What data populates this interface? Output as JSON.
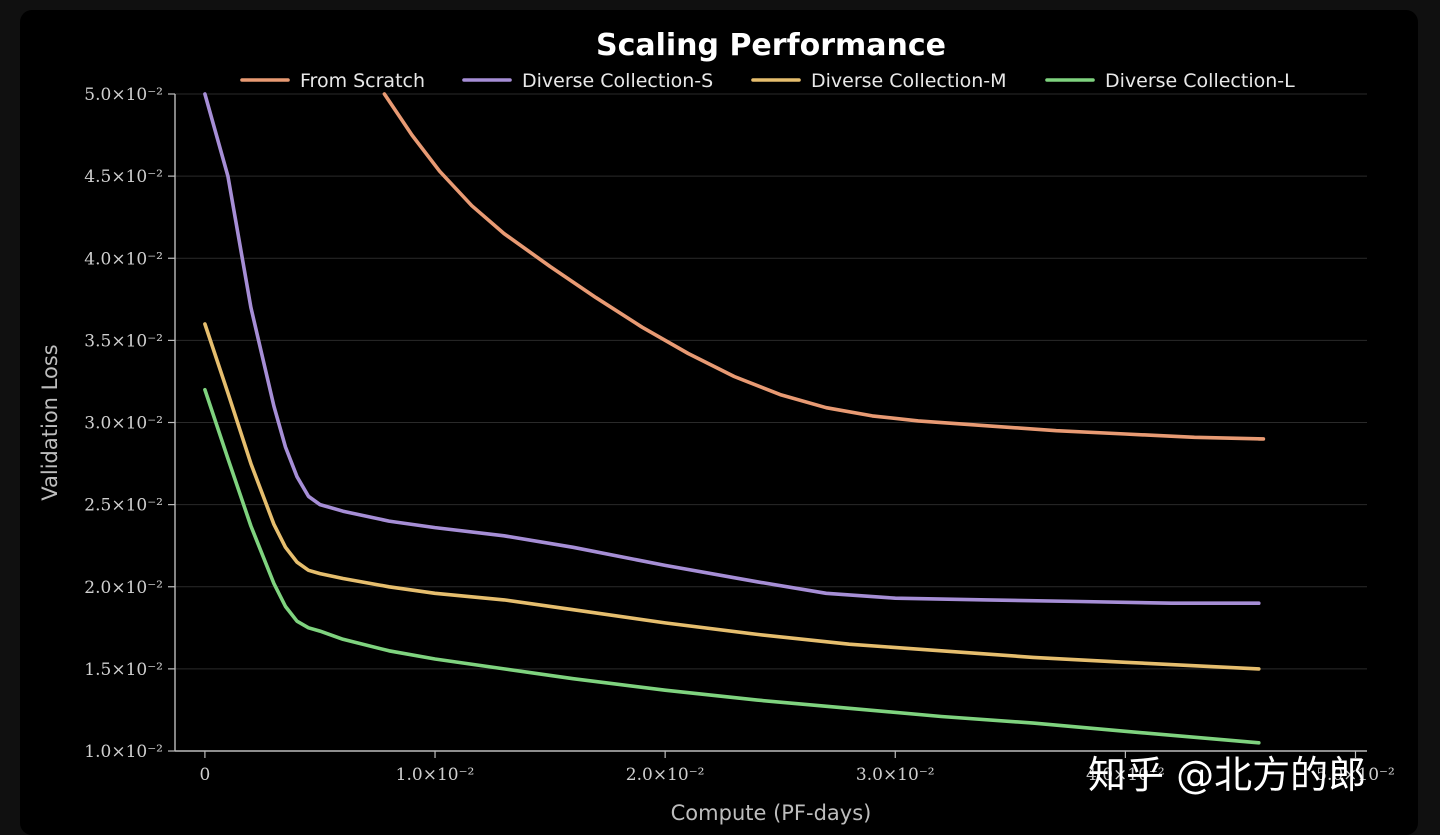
{
  "chart_data": {
    "type": "line",
    "title": "Scaling Performance",
    "xlabel": "Compute (PF-days)",
    "ylabel": "Validation Loss",
    "xlim": [
      -0.0013,
      0.0505
    ],
    "ylim": [
      0.01,
      0.05
    ],
    "grid": true,
    "grid_axis": "y",
    "legend_position": "top",
    "x_ticks": [
      0,
      0.01,
      0.02,
      0.03,
      0.04,
      0.05
    ],
    "x_tick_labels": [
      "0",
      "1.0×10⁻²",
      "2.0×10⁻²",
      "3.0×10⁻²",
      "4.0×10⁻²",
      "5.0×10⁻²"
    ],
    "y_ticks": [
      0.01,
      0.015,
      0.02,
      0.025,
      0.03,
      0.035,
      0.04,
      0.045,
      0.05
    ],
    "y_tick_labels": [
      "1.0×10⁻²",
      "1.5×10⁻²",
      "2.0×10⁻²",
      "2.5×10⁻²",
      "3.0×10⁻²",
      "3.5×10⁻²",
      "4.0×10⁻²",
      "4.5×10⁻²",
      "5.0×10⁻²"
    ],
    "series": [
      {
        "name": "From Scratch",
        "color": "#e89a73",
        "x": [
          0.0078,
          0.009,
          0.0102,
          0.0116,
          0.013,
          0.015,
          0.017,
          0.019,
          0.021,
          0.023,
          0.025,
          0.027,
          0.029,
          0.031,
          0.034,
          0.037,
          0.04,
          0.043,
          0.046,
          0.0458
        ],
        "y": [
          0.05,
          0.0475,
          0.0453,
          0.0432,
          0.0415,
          0.0395,
          0.0376,
          0.0358,
          0.0342,
          0.0328,
          0.0317,
          0.0309,
          0.0304,
          0.0301,
          0.0298,
          0.0295,
          0.0293,
          0.0291,
          0.029,
          0.029
        ]
      },
      {
        "name": "Diverse Collection-S",
        "color": "#a68ed6",
        "x": [
          0,
          0.001,
          0.002,
          0.003,
          0.0035,
          0.004,
          0.0045,
          0.005,
          0.006,
          0.008,
          0.01,
          0.013,
          0.016,
          0.02,
          0.024,
          0.027,
          0.03,
          0.034,
          0.038,
          0.042,
          0.0458
        ],
        "y": [
          0.05,
          0.045,
          0.037,
          0.031,
          0.0285,
          0.0267,
          0.0255,
          0.025,
          0.0246,
          0.024,
          0.0236,
          0.0231,
          0.0224,
          0.0213,
          0.0203,
          0.0196,
          0.0193,
          0.0192,
          0.0191,
          0.019,
          0.019
        ]
      },
      {
        "name": "Diverse Collection-M",
        "color": "#e6be6e",
        "x": [
          0,
          0.001,
          0.002,
          0.003,
          0.0035,
          0.004,
          0.0045,
          0.005,
          0.006,
          0.008,
          0.01,
          0.013,
          0.016,
          0.02,
          0.024,
          0.028,
          0.032,
          0.036,
          0.04,
          0.0458
        ],
        "y": [
          0.036,
          0.0318,
          0.0275,
          0.0238,
          0.0224,
          0.0215,
          0.021,
          0.0208,
          0.0205,
          0.02,
          0.0196,
          0.0192,
          0.0186,
          0.0178,
          0.0171,
          0.0165,
          0.0161,
          0.0157,
          0.0154,
          0.015
        ]
      },
      {
        "name": "Diverse Collection-L",
        "color": "#7fd37f",
        "x": [
          0,
          0.001,
          0.002,
          0.003,
          0.0035,
          0.004,
          0.0045,
          0.005,
          0.006,
          0.008,
          0.01,
          0.013,
          0.016,
          0.02,
          0.024,
          0.028,
          0.032,
          0.036,
          0.04,
          0.0458
        ],
        "y": [
          0.032,
          0.0278,
          0.0237,
          0.0202,
          0.0188,
          0.0179,
          0.0175,
          0.0173,
          0.0168,
          0.0161,
          0.0156,
          0.015,
          0.0144,
          0.0137,
          0.0131,
          0.0126,
          0.0121,
          0.0117,
          0.0112,
          0.0105
        ]
      }
    ]
  },
  "watermark": {
    "text": "知乎 @北方的郎"
  }
}
